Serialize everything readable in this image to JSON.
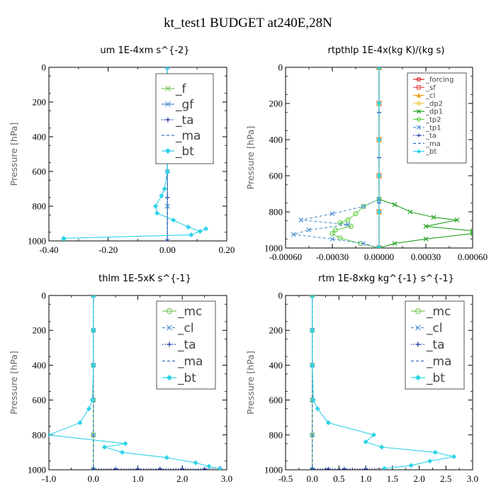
{
  "figure": {
    "title": "kt_test1  BUDGET at240E,28N"
  },
  "chart_data": [
    {
      "type": "line",
      "title": "um  1E-4xm s^{-2}",
      "ylabel": "Pressure [hPa]",
      "xlim": [
        -0.4,
        0.2
      ],
      "ylim": [
        1000,
        0
      ],
      "xticks": [
        "-0.40",
        "-0.20",
        "0.00",
        "0.20"
      ],
      "yticks": [
        "0",
        "200",
        "400",
        "600",
        "800",
        "1000"
      ],
      "legend": "big",
      "series": [
        {
          "name": "_f",
          "color": "#7cc85a",
          "marker": "x",
          "style": "solid",
          "x": [
            0,
            0,
            0,
            0,
            0,
            0
          ],
          "y": [
            0,
            200,
            400,
            600,
            800,
            1000
          ]
        },
        {
          "name": "_gf",
          "color": "#4f8fcf",
          "marker": "x",
          "style": "solid",
          "x": [
            0,
            0,
            0,
            0,
            0,
            0
          ],
          "y": [
            0,
            200,
            400,
            600,
            800,
            1000
          ]
        },
        {
          "name": "_ta",
          "color": "#1a3aa6",
          "marker": "+",
          "style": "dotted",
          "x": [
            0,
            0,
            0,
            0,
            0
          ],
          "y": [
            0,
            250,
            500,
            750,
            1000
          ]
        },
        {
          "name": "_ma",
          "color": "#3a6fc0",
          "marker": "-",
          "style": "dashed",
          "x": [
            0,
            0,
            0,
            0,
            0
          ],
          "y": [
            0,
            250,
            500,
            750,
            1000
          ]
        },
        {
          "name": "_bt",
          "color": "#2fd3e8",
          "marker": "diamond",
          "style": "solid",
          "x": [
            0,
            0,
            0,
            0,
            -0.01,
            -0.02,
            -0.04,
            -0.035,
            0.02,
            0.07,
            0.11,
            0.13,
            0.08,
            -0.35,
            -0.35
          ],
          "y": [
            0,
            200,
            400,
            600,
            700,
            740,
            800,
            840,
            880,
            920,
            945,
            930,
            965,
            985,
            990
          ]
        }
      ]
    },
    {
      "type": "line",
      "title": "rtpthlp  1E-4x(kg K)/(kg s)",
      "ylabel": "Pressure [hPa]",
      "xlim": [
        -0.0006,
        0.0006
      ],
      "ylim": [
        1000,
        0
      ],
      "xticks": [
        "-0.00060",
        "-0.00030",
        "0.00000",
        "0.00030",
        "0.00060"
      ],
      "yticks": [
        "0",
        "200",
        "400",
        "600",
        "800",
        "1000"
      ],
      "legend": "small",
      "series": [
        {
          "name": "_forcing",
          "color": "#e01c1c",
          "marker": "o",
          "style": "solid",
          "x": [
            0,
            0,
            0,
            0,
            0,
            0
          ],
          "y": [
            0,
            200,
            400,
            600,
            800,
            1000
          ]
        },
        {
          "name": "_sf",
          "color": "#e85050",
          "marker": "square",
          "style": "solid",
          "x": [
            0,
            0,
            0,
            0,
            0,
            0
          ],
          "y": [
            0,
            200,
            400,
            600,
            800,
            1000
          ]
        },
        {
          "name": "_cl",
          "color": "#f0a020",
          "marker": "triangle",
          "style": "solid",
          "x": [
            0,
            0,
            0,
            0,
            0,
            0
          ],
          "y": [
            0,
            200,
            400,
            600,
            800,
            1000
          ]
        },
        {
          "name": "_dp2",
          "color": "#f2c84a",
          "marker": "o",
          "style": "solid",
          "x": [
            0,
            0,
            0,
            0,
            0,
            0
          ],
          "y": [
            0,
            200,
            400,
            600,
            800,
            1000
          ]
        },
        {
          "name": "_dp1",
          "color": "#22a022",
          "marker": "x",
          "style": "solid",
          "x": [
            0,
            0,
            0.0001,
            0.0002,
            0.00035,
            0.0005,
            0.0003,
            0.0006,
            0.0006,
            0.0003,
            0.0001,
            0
          ],
          "y": [
            0,
            730,
            760,
            800,
            830,
            845,
            880,
            905,
            920,
            950,
            975,
            1000
          ]
        },
        {
          "name": "_tp2",
          "color": "#66d04a",
          "marker": "o",
          "style": "solid",
          "x": [
            0,
            -0.0001,
            -0.00015,
            -0.0002,
            -0.00025,
            -0.00018,
            -0.00028,
            -0.0003,
            -0.00025,
            -0.00012,
            0
          ],
          "y": [
            730,
            770,
            810,
            845,
            860,
            880,
            900,
            920,
            945,
            975,
            1000
          ]
        },
        {
          "name": "_tp1",
          "color": "#4f8fcf",
          "marker": "x",
          "style": "dashed",
          "x": [
            0,
            -0.0001,
            -0.0003,
            -0.0005,
            -0.0002,
            -0.00045,
            -0.00055,
            -0.0003,
            -0.0001,
            0
          ],
          "y": [
            730,
            770,
            810,
            845,
            870,
            900,
            925,
            950,
            975,
            1000
          ]
        },
        {
          "name": "_ta",
          "color": "#1a3aa6",
          "marker": "+",
          "style": "dotted",
          "x": [
            0,
            0,
            0,
            0,
            0
          ],
          "y": [
            0,
            250,
            500,
            750,
            1000
          ]
        },
        {
          "name": "_ma",
          "color": "#3a6fc0",
          "marker": "-",
          "style": "dashed",
          "x": [
            0,
            0,
            0,
            0,
            0
          ],
          "y": [
            0,
            250,
            500,
            750,
            1000
          ]
        },
        {
          "name": "_bt",
          "color": "#2fd3e8",
          "marker": "diamond",
          "style": "solid",
          "x": [
            0,
            0,
            0,
            0,
            0,
            0
          ],
          "y": [
            0,
            200,
            400,
            600,
            800,
            1000
          ]
        }
      ]
    },
    {
      "type": "line",
      "title": "thlm  1E-5xK s^{-1}",
      "ylabel": "Pressure [hPa]",
      "xlim": [
        -1.0,
        3.0
      ],
      "ylim": [
        1000,
        0
      ],
      "xticks": [
        "-1.0",
        "0.0",
        "1.0",
        "2.0",
        "3.0"
      ],
      "yticks": [
        "0",
        "200",
        "400",
        "600",
        "800",
        "1000"
      ],
      "legend": "big",
      "series": [
        {
          "name": "_mc",
          "color": "#7cc85a",
          "marker": "o",
          "style": "solid",
          "x": [
            0,
            0,
            0,
            0,
            0,
            0
          ],
          "y": [
            0,
            200,
            400,
            600,
            800,
            1000
          ]
        },
        {
          "name": "_cl",
          "color": "#4f8fcf",
          "marker": "x",
          "style": "dashed",
          "x": [
            0,
            0,
            0,
            0,
            0,
            0
          ],
          "y": [
            0,
            200,
            400,
            600,
            800,
            1000
          ]
        },
        {
          "name": "_ta",
          "color": "#1a3aa6",
          "marker": "+",
          "style": "dotted",
          "x": [
            0,
            0.5,
            1.0,
            1.5,
            2.0,
            2.5,
            2.85
          ],
          "y": [
            995,
            995,
            995,
            995,
            995,
            995,
            990
          ]
        },
        {
          "name": "_ma",
          "color": "#3a6fc0",
          "marker": "-",
          "style": "dashed",
          "x": [
            0,
            0,
            0,
            0,
            0
          ],
          "y": [
            0,
            250,
            500,
            750,
            1000
          ]
        },
        {
          "name": "_bt",
          "color": "#2fd3e8",
          "marker": "diamond",
          "style": "solid",
          "x": [
            0,
            0,
            0,
            -0.02,
            -0.1,
            -0.3,
            -1.0,
            0.72,
            0.25,
            0.65,
            1.65,
            2.3,
            2.6,
            2.85
          ],
          "y": [
            0,
            200,
            400,
            600,
            650,
            730,
            800,
            850,
            870,
            900,
            930,
            960,
            980,
            995
          ]
        }
      ]
    },
    {
      "type": "line",
      "title": "rtm  1E-8xkg kg^{-1} s^{-1}",
      "ylabel": "Pressure [hPa]",
      "xlim": [
        -0.5,
        3.0
      ],
      "ylim": [
        1000,
        0
      ],
      "xticks": [
        "-0.5",
        "0.0",
        "0.5",
        "1.0",
        "1.5",
        "2.0",
        "2.5",
        "3.0"
      ],
      "yticks": [
        "0",
        "200",
        "400",
        "600",
        "800",
        "1000"
      ],
      "legend": "big",
      "series": [
        {
          "name": "_mc",
          "color": "#7cc85a",
          "marker": "o",
          "style": "solid",
          "x": [
            0,
            0,
            0,
            0,
            0,
            0
          ],
          "y": [
            0,
            200,
            400,
            600,
            800,
            1000
          ]
        },
        {
          "name": "_cl",
          "color": "#4f8fcf",
          "marker": "x",
          "style": "dashed",
          "x": [
            0,
            0,
            0,
            0,
            0,
            0
          ],
          "y": [
            0,
            200,
            400,
            600,
            800,
            1000
          ]
        },
        {
          "name": "_ta",
          "color": "#1a3aa6",
          "marker": "+",
          "style": "dotted",
          "x": [
            0,
            0.3,
            0.6,
            1.0,
            1.35
          ],
          "y": [
            995,
            995,
            995,
            995,
            993
          ]
        },
        {
          "name": "_ma",
          "color": "#3a6fc0",
          "marker": "-",
          "style": "dashed",
          "x": [
            0,
            0,
            0,
            0,
            0
          ],
          "y": [
            0,
            250,
            500,
            750,
            1000
          ]
        },
        {
          "name": "_bt",
          "color": "#2fd3e8",
          "marker": "diamond",
          "style": "solid",
          "x": [
            0,
            0,
            0,
            0.02,
            0.1,
            0.3,
            1.15,
            1.0,
            1.3,
            2.3,
            2.65,
            2.2,
            1.85,
            1.35
          ],
          "y": [
            0,
            200,
            400,
            600,
            650,
            730,
            800,
            840,
            870,
            900,
            925,
            950,
            975,
            993
          ]
        }
      ]
    }
  ]
}
